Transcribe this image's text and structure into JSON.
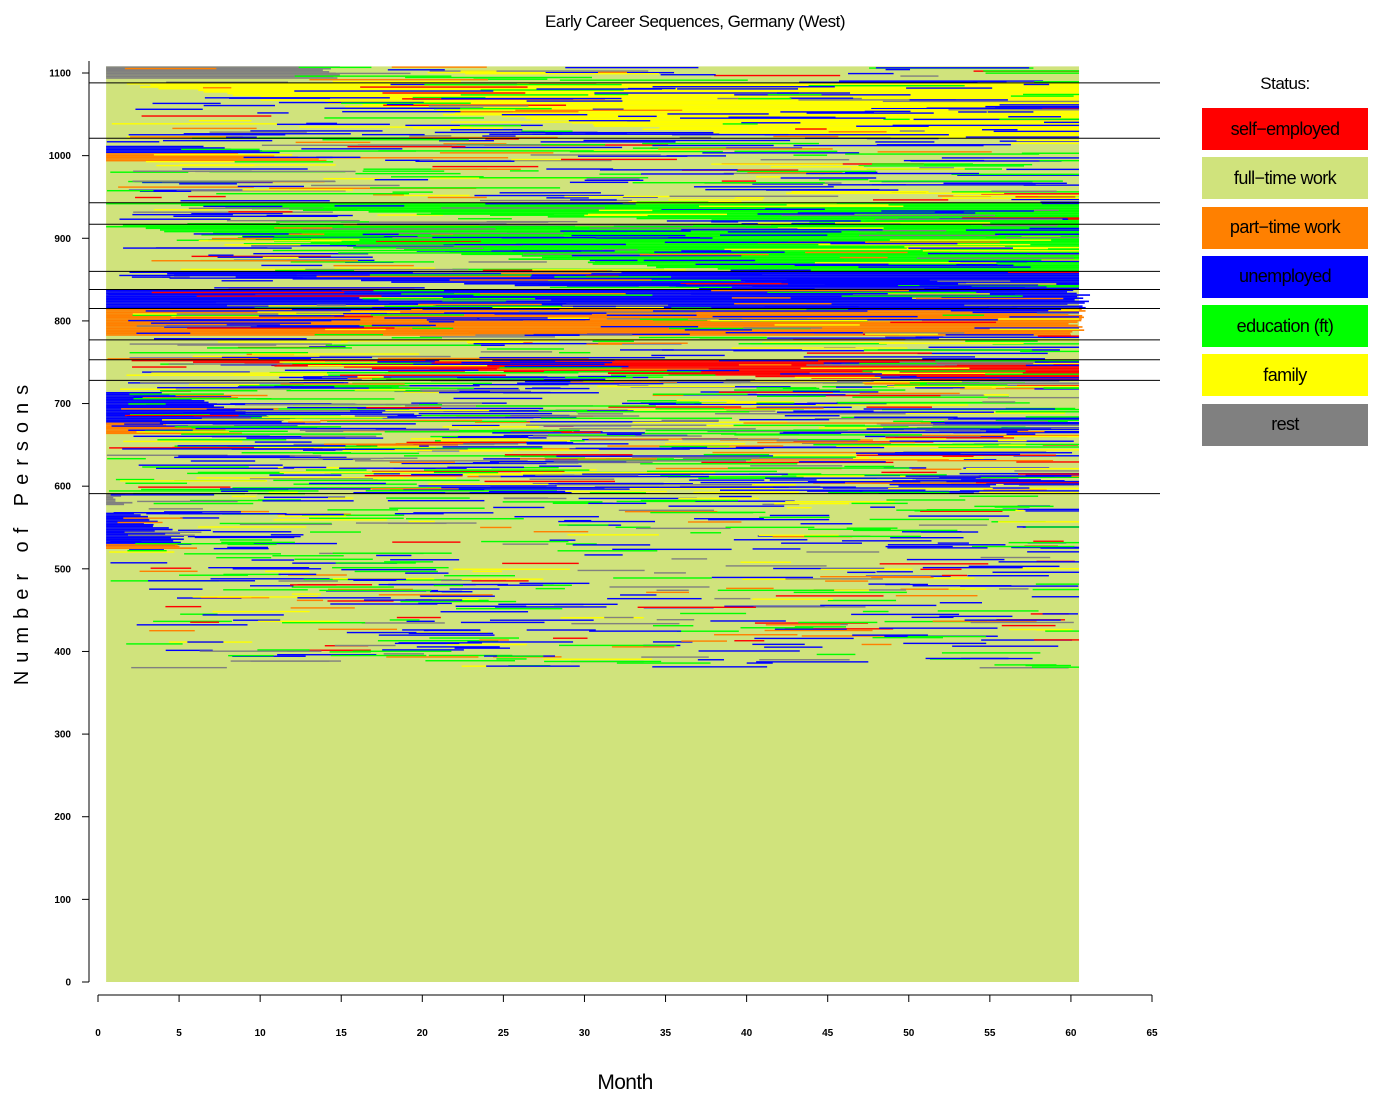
{
  "chart_data": {
    "type": "heatmap",
    "title": "Early Career Sequences, Germany (West)",
    "xlabel": "Month",
    "ylabel": "Number of Persons",
    "xlim": [
      0,
      65
    ],
    "ylim": [
      0,
      1100
    ],
    "x_ticks": [
      "0",
      "5",
      "10",
      "15",
      "20",
      "25",
      "30",
      "35",
      "40",
      "45",
      "50",
      "55",
      "60",
      "65"
    ],
    "y_ticks": [
      "0",
      "100",
      "200",
      "300",
      "400",
      "500",
      "600",
      "700",
      "800",
      "900",
      "1000",
      "1100"
    ],
    "months": [
      1,
      60
    ],
    "persons": 1108,
    "cluster_boundaries": [
      591,
      728,
      753,
      777,
      815,
      838,
      860,
      917,
      943,
      1021,
      1088
    ],
    "legend_title": "Status:",
    "states": [
      {
        "name": "self−employed",
        "color": "#ff0000"
      },
      {
        "name": "full−time work",
        "color": "#d0e37c"
      },
      {
        "name": "part−time work",
        "color": "#ff8000"
      },
      {
        "name": "unemployed",
        "color": "#0000ff"
      },
      {
        "name": "education (ft)",
        "color": "#00ff00"
      },
      {
        "name": "family",
        "color": "#ffff00"
      },
      {
        "name": "rest",
        "color": "#808080"
      }
    ],
    "blocks": [
      {
        "state": "unemployed",
        "y": [
          527,
          568
        ],
        "x_end": [
          2,
          5
        ]
      },
      {
        "state": "part−time work",
        "y": [
          524,
          530
        ],
        "x_end": [
          3,
          6
        ]
      },
      {
        "state": "rest",
        "y": [
          577,
          591
        ],
        "x_end": [
          1,
          1
        ]
      },
      {
        "state": "unemployed",
        "y": [
          675,
          714
        ],
        "x_end": [
          3,
          12
        ]
      },
      {
        "state": "part−time work",
        "y": [
          663,
          677
        ],
        "x_end": [
          2,
          9
        ]
      },
      {
        "state": "self−employed",
        "y": [
          728,
          753
        ],
        "x_end": [
          9,
          60
        ],
        "grow": true
      },
      {
        "state": "part−time work",
        "y": [
          782,
          815
        ],
        "x_end": [
          60,
          60
        ]
      },
      {
        "state": "unemployed",
        "y": [
          815,
          838
        ],
        "x_end": [
          60,
          60
        ]
      },
      {
        "state": "unemployed",
        "y": [
          838,
          860
        ],
        "x_end": [
          24,
          60
        ],
        "grow": true
      },
      {
        "state": "education (ft)",
        "y": [
          860,
          917
        ],
        "x_end": [
          20,
          60
        ],
        "grow": true
      },
      {
        "state": "education (ft)",
        "y": [
          917,
          943
        ],
        "x_end": [
          12,
          60
        ],
        "grow": true
      },
      {
        "state": "unemployed",
        "y": [
          1003,
          1012
        ],
        "x_end": [
          5,
          10
        ]
      },
      {
        "state": "part−time work",
        "y": [
          993,
          1003
        ],
        "x_end": [
          7,
          14
        ]
      },
      {
        "state": "family",
        "y": [
          1021,
          1088
        ],
        "x_end": [
          15,
          60
        ],
        "grow": true
      },
      {
        "state": "rest",
        "y": [
          1093,
          1108
        ],
        "x_end": [
          14,
          14
        ]
      }
    ]
  }
}
